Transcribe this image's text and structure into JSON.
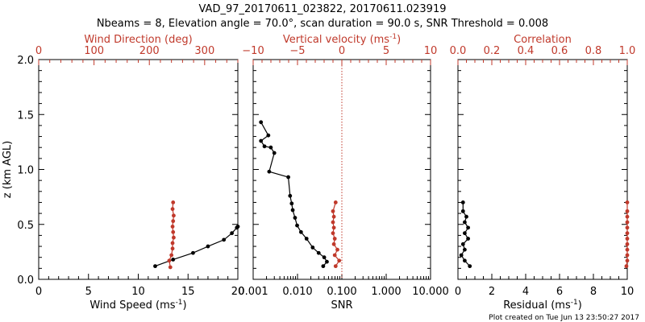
{
  "title_line1": "VAD_97_20170611_023822, 20170611.023919",
  "title_line2": "Nbeams = 8, Elevation angle = 70.0°, scan duration = 90.0 s, SNR Threshold = 0.008",
  "footer": "Plot created on Tue Jun 13 23:50:27 2017",
  "colors": {
    "black": "#000000",
    "red": "#c0392b"
  },
  "chart_data": [
    {
      "type": "line",
      "ylabel": "z (km AGL)",
      "ylim": [
        0,
        2
      ],
      "yticks": [
        "0.0",
        "0.5",
        "1.0",
        "1.5",
        "2.0"
      ],
      "xlabel": "Wind Speed (ms",
      "xlabel_sup": "-1",
      "xlabel_end": ")",
      "xlim": [
        0,
        20
      ],
      "xticks": [
        "0",
        "5",
        "10",
        "15",
        "20"
      ],
      "top_label": "Wind Direction (deg)",
      "top_lim": [
        0,
        360
      ],
      "top_ticks": [
        "0",
        "100",
        "200",
        "300"
      ],
      "series": [
        {
          "axis": "bottom",
          "color": "#000000",
          "points": [
            [
              11.7,
              0.12
            ],
            [
              13.5,
              0.18
            ],
            [
              15.5,
              0.24
            ],
            [
              17.0,
              0.3
            ],
            [
              18.6,
              0.36
            ],
            [
              19.4,
              0.42
            ],
            [
              19.9,
              0.47
            ],
            [
              20.0,
              0.48
            ]
          ]
        },
        {
          "axis": "top",
          "color": "#c0392b",
          "points": [
            [
              238,
              0.11
            ],
            [
              236,
              0.17
            ],
            [
              240,
              0.22
            ],
            [
              242,
              0.28
            ],
            [
              242,
              0.33
            ],
            [
              244,
              0.38
            ],
            [
              243,
              0.43
            ],
            [
              242,
              0.48
            ],
            [
              243,
              0.53
            ],
            [
              244,
              0.58
            ],
            [
              242,
              0.64
            ],
            [
              243,
              0.7
            ]
          ]
        }
      ]
    },
    {
      "type": "line",
      "xlabel": "SNR",
      "xscale": "log",
      "xlim": [
        0.001,
        10
      ],
      "xticks": [
        "0.001",
        "0.010",
        "0.100",
        "1.000",
        "10.000"
      ],
      "top_label": "Vertical velocity (ms",
      "top_label_sup": "-1",
      "top_label_end": ")",
      "top_lim": [
        -10,
        10
      ],
      "top_ticks": [
        "−10",
        "−5",
        "0",
        "5",
        "10"
      ],
      "reference_line": {
        "axis": "top",
        "value": 0,
        "style": "dotted",
        "color": "#c0392b"
      },
      "series": [
        {
          "axis": "bottom",
          "color": "#000000",
          "points": [
            [
              0.0015,
              1.43
            ],
            [
              0.0022,
              1.31
            ],
            [
              0.0015,
              1.26
            ],
            [
              0.0018,
              1.21
            ],
            [
              0.0025,
              1.2
            ],
            [
              0.003,
              1.15
            ],
            [
              0.0023,
              0.98
            ],
            [
              0.0062,
              0.93
            ],
            [
              0.0068,
              0.76
            ],
            [
              0.0074,
              0.69
            ],
            [
              0.0078,
              0.63
            ],
            [
              0.0088,
              0.56
            ],
            [
              0.0098,
              0.49
            ],
            [
              0.012,
              0.43
            ],
            [
              0.016,
              0.37
            ],
            [
              0.022,
              0.29
            ],
            [
              0.03,
              0.24
            ],
            [
              0.04,
              0.2
            ],
            [
              0.046,
              0.16
            ],
            [
              0.038,
              0.12
            ]
          ]
        },
        {
          "axis": "top",
          "color": "#c0392b",
          "points": [
            [
              -0.7,
              0.12
            ],
            [
              -0.3,
              0.17
            ],
            [
              -0.8,
              0.22
            ],
            [
              -0.5,
              0.27
            ],
            [
              -0.9,
              0.32
            ],
            [
              -0.8,
              0.37
            ],
            [
              -1.0,
              0.42
            ],
            [
              -0.9,
              0.47
            ],
            [
              -1.0,
              0.52
            ],
            [
              -0.9,
              0.57
            ],
            [
              -1.0,
              0.62
            ],
            [
              -0.7,
              0.7
            ]
          ]
        }
      ]
    },
    {
      "type": "line",
      "xlabel": "Residual (ms",
      "xlabel_sup": "-1",
      "xlabel_end": ")",
      "xlim": [
        0,
        10
      ],
      "xticks": [
        "0",
        "2",
        "4",
        "6",
        "8",
        "10"
      ],
      "top_label": "Correlation",
      "top_lim": [
        0,
        1
      ],
      "top_ticks": [
        "0.0",
        "0.2",
        "0.4",
        "0.6",
        "0.8",
        "1.0"
      ],
      "series": [
        {
          "axis": "bottom",
          "color": "#000000",
          "points": [
            [
              0.7,
              0.12
            ],
            [
              0.4,
              0.17
            ],
            [
              0.2,
              0.22
            ],
            [
              0.4,
              0.27
            ],
            [
              0.3,
              0.32
            ],
            [
              0.6,
              0.37
            ],
            [
              0.4,
              0.42
            ],
            [
              0.6,
              0.47
            ],
            [
              0.4,
              0.52
            ],
            [
              0.5,
              0.57
            ],
            [
              0.3,
              0.62
            ],
            [
              0.3,
              0.7
            ]
          ]
        },
        {
          "axis": "top",
          "color": "#c0392b",
          "points": [
            [
              0.995,
              0.12
            ],
            [
              1.0,
              0.17
            ],
            [
              1.0,
              0.22
            ],
            [
              1.0,
              0.27
            ],
            [
              1.0,
              0.32
            ],
            [
              1.0,
              0.37
            ],
            [
              1.0,
              0.42
            ],
            [
              1.0,
              0.47
            ],
            [
              1.0,
              0.52
            ],
            [
              1.0,
              0.57
            ],
            [
              1.0,
              0.62
            ],
            [
              1.0,
              0.7
            ]
          ]
        }
      ]
    }
  ]
}
